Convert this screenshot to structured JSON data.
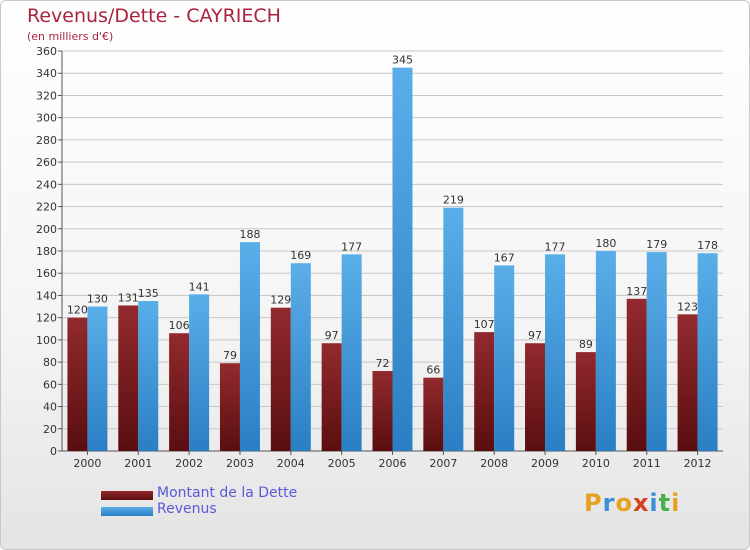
{
  "title": "Revenus/Dette - CAYRIECH",
  "subtitle": "(en milliers d'€)",
  "brand": {
    "letters": [
      "P",
      "r",
      "o",
      "x",
      "i",
      "t",
      "i"
    ],
    "colors": [
      "#e8a020",
      "#3a8fd8",
      "#e8a020",
      "#d84020",
      "#3a8fd8",
      "#48b048",
      "#e8a020"
    ]
  },
  "colors": {
    "dette": "#7a1a1e",
    "revenus": "#4a9de0",
    "axis_text": "#333333",
    "grid": "#c8c8c8"
  },
  "chart_data": {
    "type": "bar",
    "title": "Revenus/Dette - CAYRIECH",
    "ylabel": "(en milliers d'€)",
    "xlabel": "",
    "categories": [
      "2000",
      "2001",
      "2002",
      "2003",
      "2004",
      "2005",
      "2006",
      "2007",
      "2008",
      "2009",
      "2010",
      "2011",
      "2012"
    ],
    "series": [
      {
        "name": "Montant de la Dette",
        "values": [
          120,
          131,
          106,
          79,
          129,
          97,
          72,
          66,
          107,
          97,
          89,
          137,
          123
        ]
      },
      {
        "name": "Revenus",
        "values": [
          130,
          135,
          141,
          188,
          169,
          177,
          345,
          219,
          167,
          177,
          180,
          179,
          178
        ]
      }
    ],
    "ylim": [
      0,
      360
    ],
    "ytick_step": 20,
    "grid": true,
    "legend_position": "bottom-left"
  }
}
